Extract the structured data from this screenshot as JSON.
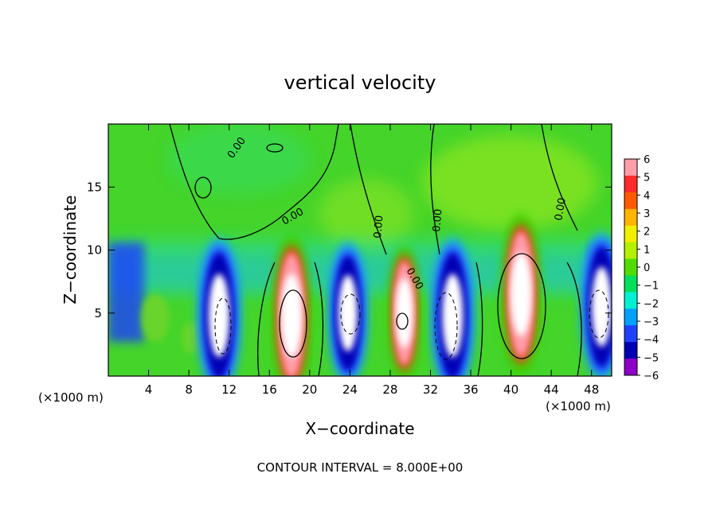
{
  "chart_data": {
    "type": "heatmap",
    "title": "vertical velocity",
    "xlabel": "X−coordinate",
    "ylabel": "Z−coordinate",
    "x_unit_left": "(×1000 m)",
    "x_unit_right": "(×1000 m)",
    "footer": "CONTOUR INTERVAL = 8.000E+00",
    "xlim": [
      0,
      50
    ],
    "ylim": [
      0,
      20
    ],
    "x_ticks": [
      4,
      8,
      12,
      16,
      20,
      24,
      28,
      32,
      36,
      40,
      44,
      48
    ],
    "y_ticks": [
      5,
      10,
      15
    ],
    "grid": false,
    "colorbar": {
      "ticks": [
        6,
        5,
        4,
        3,
        2,
        1,
        0,
        -1,
        -2,
        -3,
        -4,
        -5,
        -6
      ],
      "colors": [
        "#ff9ea8",
        "#ff2a2a",
        "#ff5a00",
        "#ffb400",
        "#f0f000",
        "#b4f000",
        "#50dc00",
        "#00e05a",
        "#00f0d2",
        "#00a0ff",
        "#2040ff",
        "#0000b4",
        "#8c00c8"
      ]
    },
    "contour_labels": [
      "0.00",
      "0.00",
      "0.00",
      "0.00",
      "0.00",
      "0.00"
    ],
    "updrafts": [
      {
        "x": 18.2,
        "z": 4.8,
        "strength": 1.0
      },
      {
        "x": 29.4,
        "z": 5.0,
        "strength": 0.6
      },
      {
        "x": 41.0,
        "z": 6.5,
        "strength": 1.0
      }
    ],
    "downdrafts": [
      {
        "x": 11.0,
        "z": 4.8,
        "strength": 1.0
      },
      {
        "x": 23.8,
        "z": 5.0,
        "strength": 0.8
      },
      {
        "x": 34.2,
        "z": 4.8,
        "strength": 1.0
      },
      {
        "x": 49.0,
        "z": 5.5,
        "strength": 0.9
      }
    ]
  }
}
